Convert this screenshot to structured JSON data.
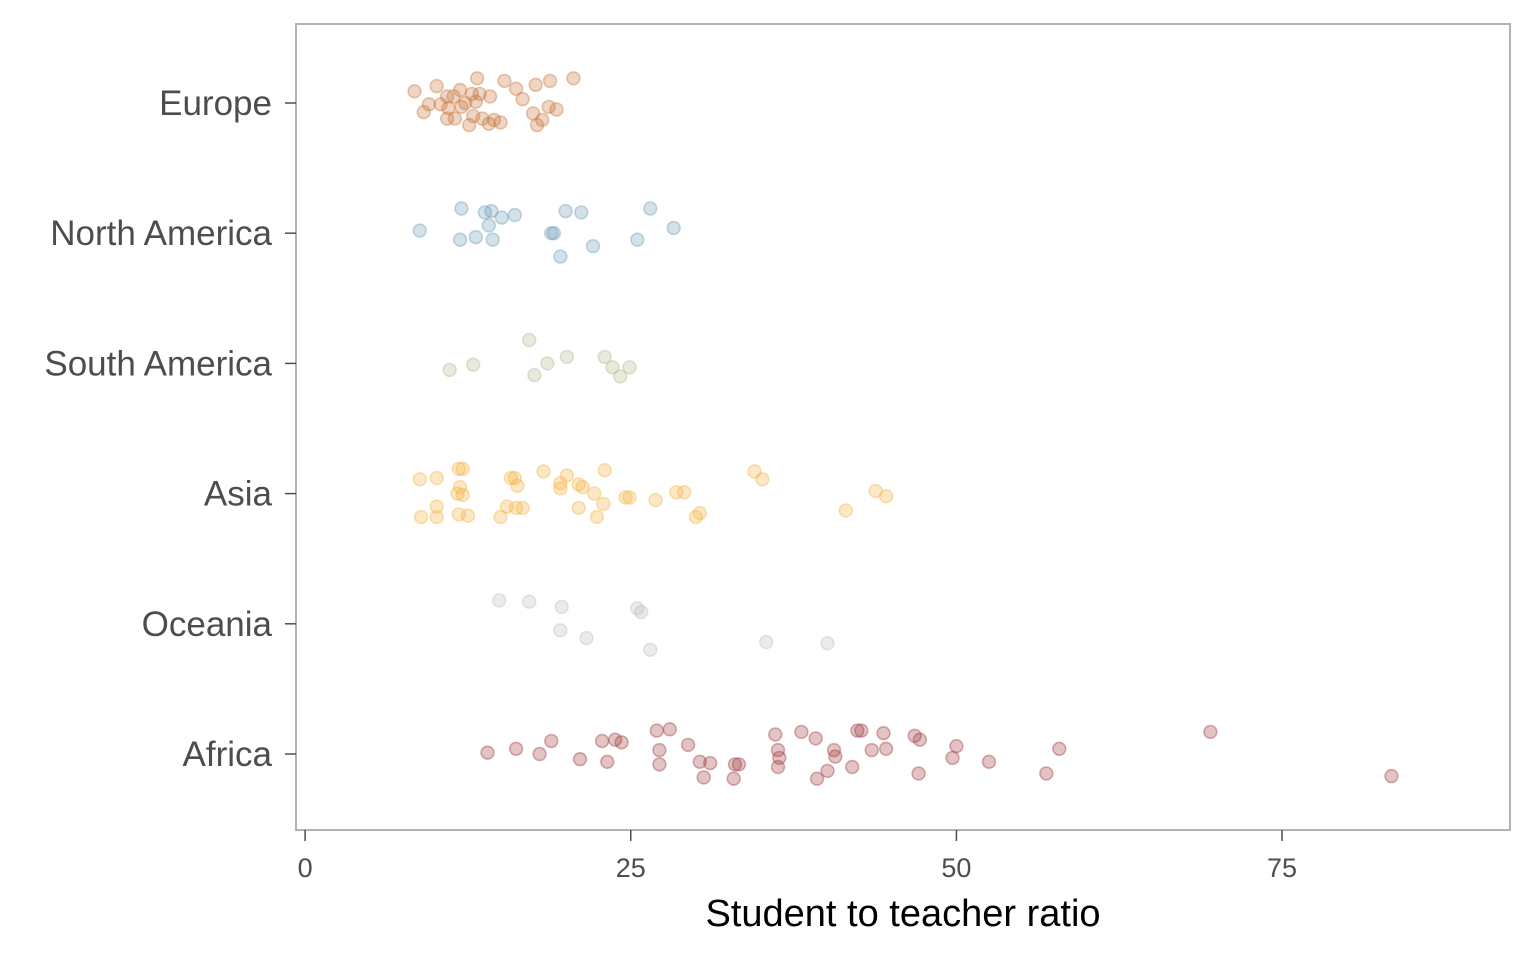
{
  "chart_data": {
    "type": "scatter",
    "title": "",
    "xlabel": "Student to teacher ratio",
    "ylabel": "",
    "xlim": [
      -0.7,
      92.5
    ],
    "x_ticks": [
      0,
      25,
      50,
      75
    ],
    "x_tick_labels": [
      "0",
      "25",
      "50",
      "75"
    ],
    "categories": [
      "Europe",
      "North America",
      "South America",
      "Asia",
      "Oceania",
      "Africa"
    ],
    "grid": false,
    "legend": "none",
    "point_alpha": 0.3,
    "series": [
      {
        "category": "Europe",
        "color": "#C8753C",
        "points": [
          {
            "x": 8.4,
            "y": 0.09
          },
          {
            "x": 10.1,
            "y": 0.13
          },
          {
            "x": 11.9,
            "y": 0.1
          },
          {
            "x": 13.2,
            "y": 0.19
          },
          {
            "x": 15.3,
            "y": 0.17
          },
          {
            "x": 16.2,
            "y": 0.11
          },
          {
            "x": 17.7,
            "y": 0.14
          },
          {
            "x": 18.8,
            "y": 0.17
          },
          {
            "x": 20.6,
            "y": 0.19
          },
          {
            "x": 9.5,
            "y": -0.01
          },
          {
            "x": 10.4,
            "y": -0.01
          },
          {
            "x": 10.9,
            "y": 0.05
          },
          {
            "x": 11.4,
            "y": 0.05
          },
          {
            "x": 12.3,
            "y": 0.0
          },
          {
            "x": 13.1,
            "y": 0.01
          },
          {
            "x": 13.4,
            "y": 0.07
          },
          {
            "x": 12.8,
            "y": 0.07
          },
          {
            "x": 14.2,
            "y": 0.05
          },
          {
            "x": 16.7,
            "y": 0.03
          },
          {
            "x": 17.5,
            "y": -0.08
          },
          {
            "x": 18.7,
            "y": -0.03
          },
          {
            "x": 19.3,
            "y": -0.05
          },
          {
            "x": 9.1,
            "y": -0.07
          },
          {
            "x": 10.9,
            "y": -0.12
          },
          {
            "x": 11.5,
            "y": -0.12
          },
          {
            "x": 12.9,
            "y": -0.1
          },
          {
            "x": 13.6,
            "y": -0.12
          },
          {
            "x": 14.1,
            "y": -0.16
          },
          {
            "x": 14.5,
            "y": -0.13
          },
          {
            "x": 15.0,
            "y": -0.15
          },
          {
            "x": 12.6,
            "y": -0.17
          },
          {
            "x": 17.8,
            "y": -0.17
          },
          {
            "x": 18.2,
            "y": -0.13
          },
          {
            "x": 11.0,
            "y": -0.04
          },
          {
            "x": 12.0,
            "y": -0.03
          }
        ]
      },
      {
        "category": "North America",
        "color": "#6E9BB5",
        "points": [
          {
            "x": 8.8,
            "y": 0.02
          },
          {
            "x": 12.0,
            "y": 0.19
          },
          {
            "x": 13.8,
            "y": 0.16
          },
          {
            "x": 14.3,
            "y": 0.17
          },
          {
            "x": 15.1,
            "y": 0.12
          },
          {
            "x": 16.1,
            "y": 0.14
          },
          {
            "x": 20.0,
            "y": 0.17
          },
          {
            "x": 21.2,
            "y": 0.16
          },
          {
            "x": 26.5,
            "y": 0.19
          },
          {
            "x": 14.1,
            "y": 0.06
          },
          {
            "x": 28.3,
            "y": 0.04
          },
          {
            "x": 11.9,
            "y": -0.05
          },
          {
            "x": 13.1,
            "y": -0.03
          },
          {
            "x": 14.4,
            "y": -0.05
          },
          {
            "x": 18.9,
            "y": 0.0
          },
          {
            "x": 19.1,
            "y": 0.0
          },
          {
            "x": 22.1,
            "y": -0.1
          },
          {
            "x": 25.5,
            "y": -0.05
          },
          {
            "x": 19.6,
            "y": -0.18
          }
        ]
      },
      {
        "category": "South America",
        "color": "#B2BA8E",
        "points": [
          {
            "x": 17.2,
            "y": 0.18
          },
          {
            "x": 20.1,
            "y": 0.05
          },
          {
            "x": 23.0,
            "y": 0.05
          },
          {
            "x": 12.9,
            "y": -0.01
          },
          {
            "x": 18.6,
            "y": 0.0
          },
          {
            "x": 11.1,
            "y": -0.05
          },
          {
            "x": 17.6,
            "y": -0.09
          },
          {
            "x": 23.6,
            "y": -0.03
          },
          {
            "x": 24.9,
            "y": -0.03
          },
          {
            "x": 24.2,
            "y": -0.1
          }
        ]
      },
      {
        "category": "Asia",
        "color": "#F5B441",
        "points": [
          {
            "x": 8.8,
            "y": 0.11
          },
          {
            "x": 10.1,
            "y": 0.12
          },
          {
            "x": 11.8,
            "y": 0.19
          },
          {
            "x": 12.1,
            "y": 0.19
          },
          {
            "x": 15.8,
            "y": 0.12
          },
          {
            "x": 16.1,
            "y": 0.12
          },
          {
            "x": 18.3,
            "y": 0.17
          },
          {
            "x": 20.1,
            "y": 0.14
          },
          {
            "x": 23.0,
            "y": 0.18
          },
          {
            "x": 34.5,
            "y": 0.17
          },
          {
            "x": 35.1,
            "y": 0.11
          },
          {
            "x": 11.9,
            "y": 0.05
          },
          {
            "x": 12.1,
            "y": -0.01
          },
          {
            "x": 16.3,
            "y": 0.06
          },
          {
            "x": 19.6,
            "y": 0.08
          },
          {
            "x": 19.6,
            "y": 0.04
          },
          {
            "x": 21.0,
            "y": 0.07
          },
          {
            "x": 21.3,
            "y": 0.05
          },
          {
            "x": 22.2,
            "y": 0.0
          },
          {
            "x": 24.6,
            "y": -0.03
          },
          {
            "x": 24.9,
            "y": -0.03
          },
          {
            "x": 26.9,
            "y": -0.05
          },
          {
            "x": 28.5,
            "y": 0.01
          },
          {
            "x": 29.1,
            "y": 0.01
          },
          {
            "x": 43.8,
            "y": 0.02
          },
          {
            "x": 44.6,
            "y": -0.02
          },
          {
            "x": 11.7,
            "y": 0.0
          },
          {
            "x": 8.9,
            "y": -0.18
          },
          {
            "x": 10.1,
            "y": -0.1
          },
          {
            "x": 10.1,
            "y": -0.18
          },
          {
            "x": 11.8,
            "y": -0.16
          },
          {
            "x": 12.5,
            "y": -0.17
          },
          {
            "x": 15.5,
            "y": -0.1
          },
          {
            "x": 15.0,
            "y": -0.18
          },
          {
            "x": 16.2,
            "y": -0.11
          },
          {
            "x": 16.7,
            "y": -0.11
          },
          {
            "x": 21.0,
            "y": -0.11
          },
          {
            "x": 22.4,
            "y": -0.18
          },
          {
            "x": 22.9,
            "y": -0.08
          },
          {
            "x": 30.0,
            "y": -0.18
          },
          {
            "x": 30.3,
            "y": -0.15
          },
          {
            "x": 41.5,
            "y": -0.13
          }
        ]
      },
      {
        "category": "Oceania",
        "color": "#BDBDBD",
        "points": [
          {
            "x": 14.9,
            "y": 0.18
          },
          {
            "x": 17.2,
            "y": 0.17
          },
          {
            "x": 19.7,
            "y": 0.13
          },
          {
            "x": 25.5,
            "y": 0.12
          },
          {
            "x": 25.8,
            "y": 0.09
          },
          {
            "x": 19.6,
            "y": -0.05
          },
          {
            "x": 21.6,
            "y": -0.11
          },
          {
            "x": 35.4,
            "y": -0.14
          },
          {
            "x": 40.1,
            "y": -0.15
          },
          {
            "x": 26.5,
            "y": -0.2
          }
        ]
      },
      {
        "category": "Africa",
        "color": "#9E3A3F",
        "points": [
          {
            "x": 14.0,
            "y": 0.01
          },
          {
            "x": 16.2,
            "y": 0.04
          },
          {
            "x": 18.0,
            "y": 0.0
          },
          {
            "x": 18.9,
            "y": 0.1
          },
          {
            "x": 22.8,
            "y": 0.1
          },
          {
            "x": 23.8,
            "y": 0.11
          },
          {
            "x": 24.3,
            "y": 0.09
          },
          {
            "x": 21.1,
            "y": -0.04
          },
          {
            "x": 23.2,
            "y": -0.06
          },
          {
            "x": 27.0,
            "y": 0.18
          },
          {
            "x": 28.0,
            "y": 0.19
          },
          {
            "x": 27.2,
            "y": 0.03
          },
          {
            "x": 29.4,
            "y": 0.07
          },
          {
            "x": 27.2,
            "y": -0.08
          },
          {
            "x": 30.3,
            "y": -0.06
          },
          {
            "x": 31.1,
            "y": -0.07
          },
          {
            "x": 30.6,
            "y": -0.18
          },
          {
            "x": 32.9,
            "y": -0.19
          },
          {
            "x": 33.0,
            "y": -0.08
          },
          {
            "x": 33.3,
            "y": -0.08
          },
          {
            "x": 36.1,
            "y": 0.15
          },
          {
            "x": 36.3,
            "y": 0.03
          },
          {
            "x": 36.4,
            "y": -0.03
          },
          {
            "x": 36.3,
            "y": -0.1
          },
          {
            "x": 38.1,
            "y": 0.17
          },
          {
            "x": 39.2,
            "y": 0.12
          },
          {
            "x": 39.3,
            "y": -0.19
          },
          {
            "x": 40.1,
            "y": -0.13
          },
          {
            "x": 40.6,
            "y": 0.03
          },
          {
            "x": 40.7,
            "y": -0.02
          },
          {
            "x": 42.0,
            "y": -0.1
          },
          {
            "x": 42.4,
            "y": 0.18
          },
          {
            "x": 42.7,
            "y": 0.18
          },
          {
            "x": 43.5,
            "y": 0.03
          },
          {
            "x": 44.4,
            "y": 0.16
          },
          {
            "x": 44.6,
            "y": 0.04
          },
          {
            "x": 46.8,
            "y": 0.14
          },
          {
            "x": 47.2,
            "y": 0.11
          },
          {
            "x": 47.1,
            "y": -0.15
          },
          {
            "x": 50.0,
            "y": 0.06
          },
          {
            "x": 49.7,
            "y": -0.03
          },
          {
            "x": 52.5,
            "y": -0.06
          },
          {
            "x": 56.9,
            "y": -0.15
          },
          {
            "x": 57.9,
            "y": 0.04
          },
          {
            "x": 69.5,
            "y": 0.17
          },
          {
            "x": 83.4,
            "y": -0.17
          }
        ]
      }
    ]
  }
}
